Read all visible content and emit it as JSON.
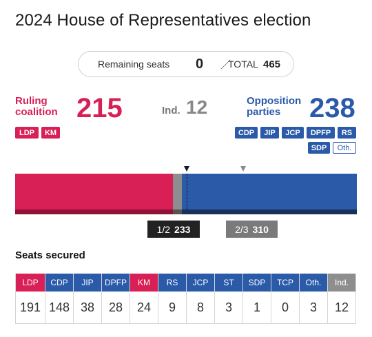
{
  "title": "2024 House of Representatives election",
  "remaining": {
    "label": "Remaining seats",
    "value": "0",
    "slash": "／",
    "total_label": "TOTAL",
    "total_value": "465"
  },
  "summary": {
    "ruling_label": "Ruling coalition",
    "ruling_seats": "215",
    "ruling_parties": [
      "LDP",
      "KM"
    ],
    "ind_label": "Ind.",
    "ind_seats": "12",
    "opp_label": "Opposition parties",
    "opp_seats": "238",
    "opp_parties": [
      "CDP",
      "JIP",
      "JCP",
      "DPFP",
      "RS",
      "SDP",
      "Oth."
    ]
  },
  "bar": {
    "total": 465,
    "ruling": 215,
    "ind": 12,
    "opp": 238,
    "half_threshold": 233,
    "two_thirds_threshold": 310
  },
  "thresholds": {
    "half_label": "1/2",
    "half_value": "233",
    "two_thirds_label": "2/3",
    "two_thirds_value": "310"
  },
  "seats_secured": {
    "title": "Seats secured",
    "parties": [
      {
        "name": "LDP",
        "seats": "191",
        "color": "#d81f56"
      },
      {
        "name": "CDP",
        "seats": "148",
        "color": "#2a5aa8"
      },
      {
        "name": "JIP",
        "seats": "38",
        "color": "#2a5aa8"
      },
      {
        "name": "DPFP",
        "seats": "28",
        "color": "#2a5aa8"
      },
      {
        "name": "KM",
        "seats": "24",
        "color": "#d81f56"
      },
      {
        "name": "RS",
        "seats": "9",
        "color": "#2a5aa8"
      },
      {
        "name": "JCP",
        "seats": "8",
        "color": "#2a5aa8"
      },
      {
        "name": "ST",
        "seats": "3",
        "color": "#2a5aa8"
      },
      {
        "name": "SDP",
        "seats": "1",
        "color": "#2a5aa8"
      },
      {
        "name": "TCP",
        "seats": "0",
        "color": "#2a5aa8"
      },
      {
        "name": "Oth.",
        "seats": "3",
        "color": "#2a5aa8"
      },
      {
        "name": "Ind.",
        "seats": "12",
        "color": "#8e8e8e"
      }
    ]
  },
  "colors": {
    "ruling": "#d81f56",
    "opposition": "#2a5aa8",
    "independent": "#8e8e8e"
  }
}
